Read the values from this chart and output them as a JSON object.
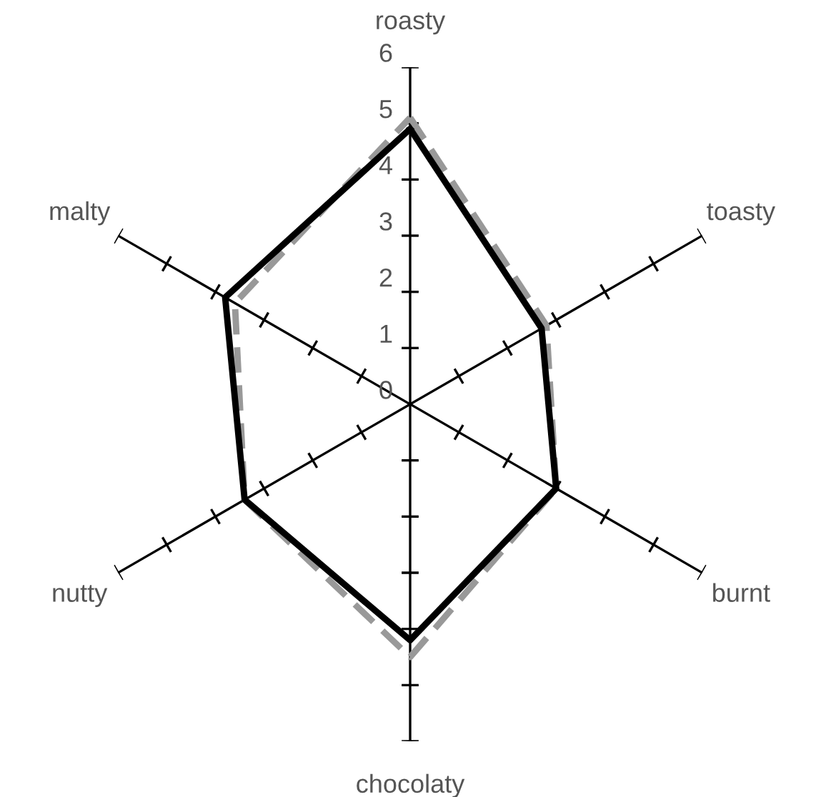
{
  "chart_data": {
    "type": "radar",
    "categories": [
      "roasty",
      "toasty",
      "burnt",
      "chocolaty",
      "nutty",
      "malty"
    ],
    "series": [
      {
        "color": "#999999",
        "line_style": "dashed",
        "values": [
          5.1,
          2.8,
          3.0,
          4.5,
          3.4,
          3.6
        ]
      },
      {
        "color": "#000000",
        "line_style": "solid",
        "values": [
          4.9,
          2.7,
          3.0,
          4.2,
          3.4,
          3.8
        ]
      }
    ],
    "ylim": [
      0,
      6
    ],
    "yticks": [
      0,
      1,
      2,
      3,
      4,
      5,
      6
    ]
  }
}
